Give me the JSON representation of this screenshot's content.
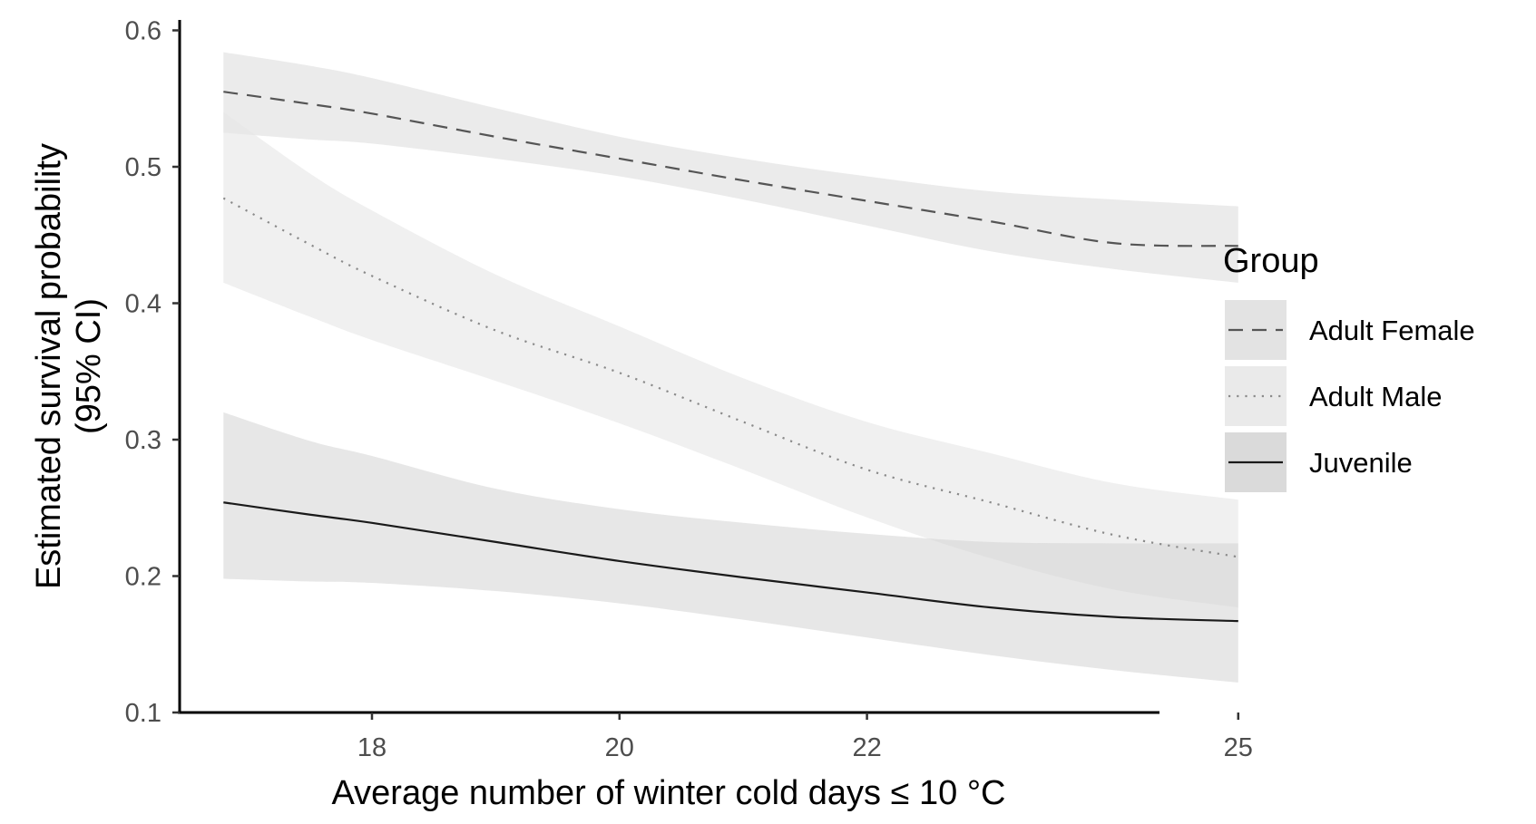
{
  "chart_data": {
    "type": "line",
    "xlabel": "Average number of winter cold days ≤ 10 °C",
    "ylabel": [
      "Estimated survival probability",
      "(95% CI)"
    ],
    "xlim": [
      16.5,
      25.5
    ],
    "ylim": [
      0.1,
      0.6
    ],
    "x_ticks": [
      18,
      20,
      22,
      25
    ],
    "x_tick_labels": [
      "18",
      "20",
      "22",
      "25"
    ],
    "y_ticks": [
      0.1,
      0.2,
      0.3,
      0.4,
      0.5,
      0.6
    ],
    "y_tick_labels": [
      "0.1",
      "0.2",
      "0.3",
      "0.4",
      "0.5",
      "0.6"
    ],
    "grid": false,
    "legend": {
      "title": "Group",
      "placement": "right"
    },
    "x": [
      16.8,
      17.5,
      18,
      19,
      20,
      21,
      22,
      23,
      24,
      25
    ],
    "series": [
      {
        "name": "Adult Female",
        "line_style": "dashed",
        "line_color": "#555555",
        "ribbon_color": "#dedede",
        "ribbon_opacity": 0.6,
        "values": [
          0.555,
          0.546,
          0.539,
          0.522,
          0.506,
          0.49,
          0.475,
          0.46,
          0.444,
          0.442
        ],
        "lower": [
          0.525,
          0.52,
          0.517,
          0.506,
          0.493,
          0.476,
          0.457,
          0.438,
          0.425,
          0.415
        ],
        "upper": [
          0.584,
          0.574,
          0.565,
          0.543,
          0.522,
          0.506,
          0.493,
          0.482,
          0.476,
          0.471
        ]
      },
      {
        "name": "Adult Male",
        "line_style": "dotted",
        "line_color": "#8a8a8a",
        "ribbon_color": "#e6e6e6",
        "ribbon_opacity": 0.6,
        "values": [
          0.477,
          0.443,
          0.42,
          0.38,
          0.349,
          0.313,
          0.278,
          0.254,
          0.23,
          0.214
        ],
        "lower": [
          0.415,
          0.39,
          0.373,
          0.343,
          0.312,
          0.278,
          0.243,
          0.213,
          0.19,
          0.177
        ],
        "upper": [
          0.54,
          0.495,
          0.468,
          0.421,
          0.383,
          0.345,
          0.313,
          0.29,
          0.268,
          0.256
        ]
      },
      {
        "name": "Juvenile",
        "line_style": "solid",
        "line_color": "#1a1a1a",
        "ribbon_color": "#d4d4d4",
        "ribbon_opacity": 0.55,
        "values": [
          0.254,
          0.245,
          0.239,
          0.225,
          0.211,
          0.199,
          0.188,
          0.177,
          0.17,
          0.167
        ],
        "lower": [
          0.198,
          0.196,
          0.195,
          0.189,
          0.18,
          0.168,
          0.155,
          0.142,
          0.131,
          0.122
        ],
        "upper": [
          0.32,
          0.299,
          0.288,
          0.264,
          0.249,
          0.239,
          0.231,
          0.225,
          0.224,
          0.224
        ]
      }
    ]
  }
}
